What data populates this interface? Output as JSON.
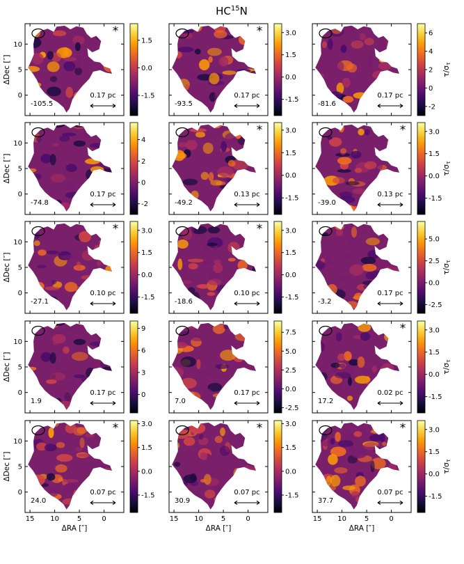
{
  "figure": {
    "title_main": "HC",
    "title_sup": "15",
    "title_tail": "N",
    "ylabel": "ΔDec [″]",
    "xlabel": "ΔRA [″]",
    "cbar_label": "τ/σ",
    "cbar_label_sub": "τ",
    "colormap": [
      "#000004",
      "#1b0c41",
      "#4a0c6b",
      "#781c6d",
      "#a52c60",
      "#cf4446",
      "#ed6925",
      "#fb9b06",
      "#f7d13d",
      "#fcffa4"
    ],
    "mask_color": "#ffffff",
    "xlim": [
      16,
      -4
    ],
    "ylim": [
      -4,
      14
    ],
    "x_ticks": [
      15,
      10,
      5,
      0
    ],
    "y_ticks": [
      0,
      5,
      10
    ]
  },
  "chart_data": [
    {
      "type": "heatmap",
      "velocity_label": "-105.5",
      "scale_bar": "0.17 pc",
      "star": true,
      "cbar_ticks": [
        "1.5",
        "0.0",
        "-1.5"
      ],
      "cbar_tick_values": [
        1.5,
        0.0,
        -1.5
      ],
      "vmin": -2.6,
      "vmax": 2.4
    },
    {
      "type": "heatmap",
      "velocity_label": "-93.5",
      "scale_bar": "0.17 pc",
      "star": true,
      "cbar_ticks": [
        "3.0",
        "1.5",
        "0.0",
        "-1.5"
      ],
      "cbar_tick_values": [
        3.0,
        1.5,
        0.0,
        -1.5
      ],
      "vmin": -2.6,
      "vmax": 3.6
    },
    {
      "type": "heatmap",
      "velocity_label": "-81.6",
      "scale_bar": "0.17 pc",
      "star": false,
      "cbar_ticks": [
        "6",
        "4",
        "2",
        "0",
        "-2"
      ],
      "cbar_tick_values": [
        6,
        4,
        2,
        0,
        -2
      ],
      "vmin": -3.0,
      "vmax": 7.0
    },
    {
      "type": "heatmap",
      "velocity_label": "-74.8",
      "scale_bar": "0.17 pc",
      "star": false,
      "cbar_ticks": [
        "4",
        "2",
        "0",
        "-2"
      ],
      "cbar_tick_values": [
        4,
        2,
        0,
        -2
      ],
      "vmin": -3.0,
      "vmax": 5.6
    },
    {
      "type": "heatmap",
      "velocity_label": "-49.2",
      "scale_bar": "0.13 pc",
      "star": true,
      "cbar_ticks": [
        "3.0",
        "1.5",
        "0.0",
        "-1.5"
      ],
      "cbar_tick_values": [
        3.0,
        1.5,
        0.0,
        -1.5
      ],
      "vmin": -2.6,
      "vmax": 3.5
    },
    {
      "type": "heatmap",
      "velocity_label": "-39.0",
      "scale_bar": "0.13 pc",
      "star": true,
      "cbar_ticks": [
        "3.0",
        "1.5",
        "0.0",
        "-1.5"
      ],
      "cbar_tick_values": [
        3.0,
        1.5,
        0.0,
        -1.5
      ],
      "vmin": -2.6,
      "vmax": 3.6
    },
    {
      "type": "heatmap",
      "velocity_label": "-27.1",
      "scale_bar": "0.10 pc",
      "star": true,
      "cbar_ticks": [
        "3.0",
        "1.5",
        "0.0",
        "-1.5"
      ],
      "cbar_tick_values": [
        3.0,
        1.5,
        0.0,
        -1.5
      ],
      "vmin": -2.6,
      "vmax": 3.6
    },
    {
      "type": "heatmap",
      "velocity_label": "-18.6",
      "scale_bar": "0.10 pc",
      "star": true,
      "cbar_ticks": [
        "3.0",
        "1.5",
        "0.0",
        "-1.5"
      ],
      "cbar_tick_values": [
        3.0,
        1.5,
        0.0,
        -1.5
      ],
      "vmin": -2.6,
      "vmax": 3.6
    },
    {
      "type": "heatmap",
      "velocity_label": "-3.2",
      "scale_bar": "0.17 pc",
      "star": false,
      "cbar_ticks": [
        "5.0",
        "2.5",
        "0.0",
        "-2.5"
      ],
      "cbar_tick_values": [
        5.0,
        2.5,
        0.0,
        -2.5
      ],
      "vmin": -3.5,
      "vmax": 7.0
    },
    {
      "type": "heatmap",
      "velocity_label": "1.9",
      "scale_bar": "0.17 pc",
      "star": false,
      "cbar_ticks": [
        "9",
        "6",
        "3",
        "0"
      ],
      "cbar_tick_values": [
        9,
        6,
        3,
        0
      ],
      "vmin": -2.5,
      "vmax": 10.0
    },
    {
      "type": "heatmap",
      "velocity_label": "7.0",
      "scale_bar": "0.17 pc",
      "star": false,
      "cbar_ticks": [
        "7.5",
        "5.0",
        "2.5",
        "0.0",
        "-2.5"
      ],
      "cbar_tick_values": [
        7.5,
        5.0,
        2.5,
        0.0,
        -2.5
      ],
      "vmin": -3.2,
      "vmax": 9.0
    },
    {
      "type": "heatmap",
      "velocity_label": "17.2",
      "scale_bar": "0.02 pc",
      "star": true,
      "cbar_ticks": [
        "3.0",
        "1.5",
        "0.0",
        "-1.5"
      ],
      "cbar_tick_values": [
        3.0,
        1.5,
        0.0,
        -1.5
      ],
      "vmin": -2.6,
      "vmax": 3.6
    },
    {
      "type": "heatmap",
      "velocity_label": "24.0",
      "scale_bar": "0.07 pc",
      "star": true,
      "cbar_ticks": [
        "3.0",
        "1.5",
        "0.0",
        "-1.5"
      ],
      "cbar_tick_values": [
        3.0,
        1.5,
        0.0,
        -1.5
      ],
      "vmin": -2.6,
      "vmax": 3.2
    },
    {
      "type": "heatmap",
      "velocity_label": "30.9",
      "scale_bar": "0.07 pc",
      "star": true,
      "cbar_ticks": [
        "3.0",
        "1.5",
        "0.0",
        "-1.5"
      ],
      "cbar_tick_values": [
        3.0,
        1.5,
        0.0,
        -1.5
      ],
      "vmin": -2.6,
      "vmax": 3.2
    },
    {
      "type": "heatmap",
      "velocity_label": "37.7",
      "scale_bar": "0.07 pc",
      "star": true,
      "cbar_ticks": [
        "3.0",
        "1.5",
        "0.0",
        "-1.5"
      ],
      "cbar_tick_values": [
        3.0,
        1.5,
        0.0,
        -1.5
      ],
      "vmin": -2.6,
      "vmax": 3.6
    }
  ]
}
